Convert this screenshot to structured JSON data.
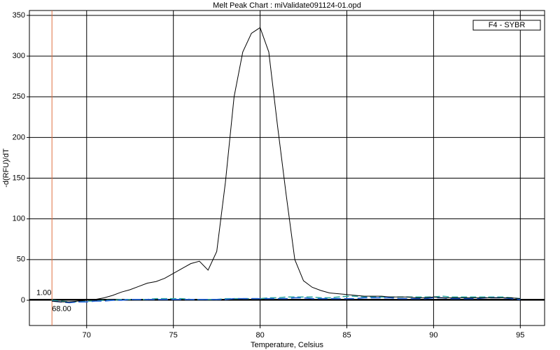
{
  "chart_data": {
    "type": "line",
    "title": "Melt Peak Chart : miValidate091124-01.opd",
    "x_label": "Temperature, Celsius",
    "y_label": "-d(RFU)/dT",
    "legend_label": "F4 - SYBR",
    "x": [
      68,
      68.5,
      69,
      69.5,
      70,
      70.5,
      71,
      71.5,
      72,
      72.5,
      73,
      73.5,
      74,
      74.5,
      75,
      75.5,
      76,
      76.5,
      77,
      77.5,
      78,
      78.5,
      79,
      79.5,
      80,
      80.5,
      81,
      81.5,
      82,
      82.5,
      83,
      83.5,
      84,
      84.5,
      85,
      85.5,
      86,
      86.5,
      87,
      87.5,
      88,
      88.5,
      89,
      89.5,
      90,
      90.5,
      91,
      91.5,
      92,
      92.5,
      93,
      93.5,
      94,
      94.5,
      95
    ],
    "series": [
      {
        "color": "#000000",
        "values": [
          -1,
          -2,
          -2,
          -1,
          0,
          1,
          3,
          6,
          10,
          13,
          17,
          21,
          23,
          27,
          33,
          39,
          45,
          48,
          37,
          60,
          145,
          250,
          305,
          328,
          335,
          305,
          215,
          130,
          50,
          24,
          16,
          12,
          9,
          8,
          7,
          6,
          5,
          5,
          5,
          4,
          4,
          4,
          3,
          3,
          4,
          3,
          3,
          3,
          3,
          3,
          3,
          3,
          3,
          3,
          2
        ]
      },
      {
        "color": "#1f5fd6",
        "values": [
          -1,
          -2,
          -3,
          -2,
          -2,
          -1,
          -1,
          0,
          0,
          1,
          1,
          1,
          1,
          1,
          1,
          1,
          1,
          1,
          1,
          1,
          1,
          2,
          2,
          2,
          2,
          2,
          2,
          2,
          3,
          3,
          2,
          2,
          2,
          2,
          2,
          2,
          3,
          3,
          3,
          3,
          2,
          2,
          2,
          2,
          3,
          3,
          2,
          2,
          2,
          2,
          3,
          3,
          3,
          2,
          1
        ]
      },
      {
        "color": "#2fa8a0",
        "values": [
          0,
          -1,
          -2,
          -2,
          -1,
          -1,
          0,
          0,
          1,
          1,
          1,
          1,
          2,
          2,
          2,
          2,
          1,
          1,
          1,
          1,
          2,
          2,
          2,
          2,
          2,
          3,
          3,
          4,
          4,
          4,
          4,
          3,
          3,
          4,
          5,
          5,
          4,
          4,
          4,
          4,
          4,
          4,
          4,
          4,
          4,
          5,
          4,
          4,
          4,
          4,
          4,
          4,
          4,
          3,
          2
        ]
      }
    ],
    "threshold": {
      "value": 1,
      "label": "1.00"
    },
    "marker": {
      "value": 68,
      "label": "68.00"
    },
    "xlim": [
      66.7,
      96.4
    ],
    "ylim": [
      -31,
      356
    ],
    "xticks": [
      70,
      75,
      80,
      85,
      90,
      95
    ],
    "yticks": [
      0,
      50,
      100,
      150,
      200,
      250,
      300,
      350
    ],
    "grid": true
  }
}
